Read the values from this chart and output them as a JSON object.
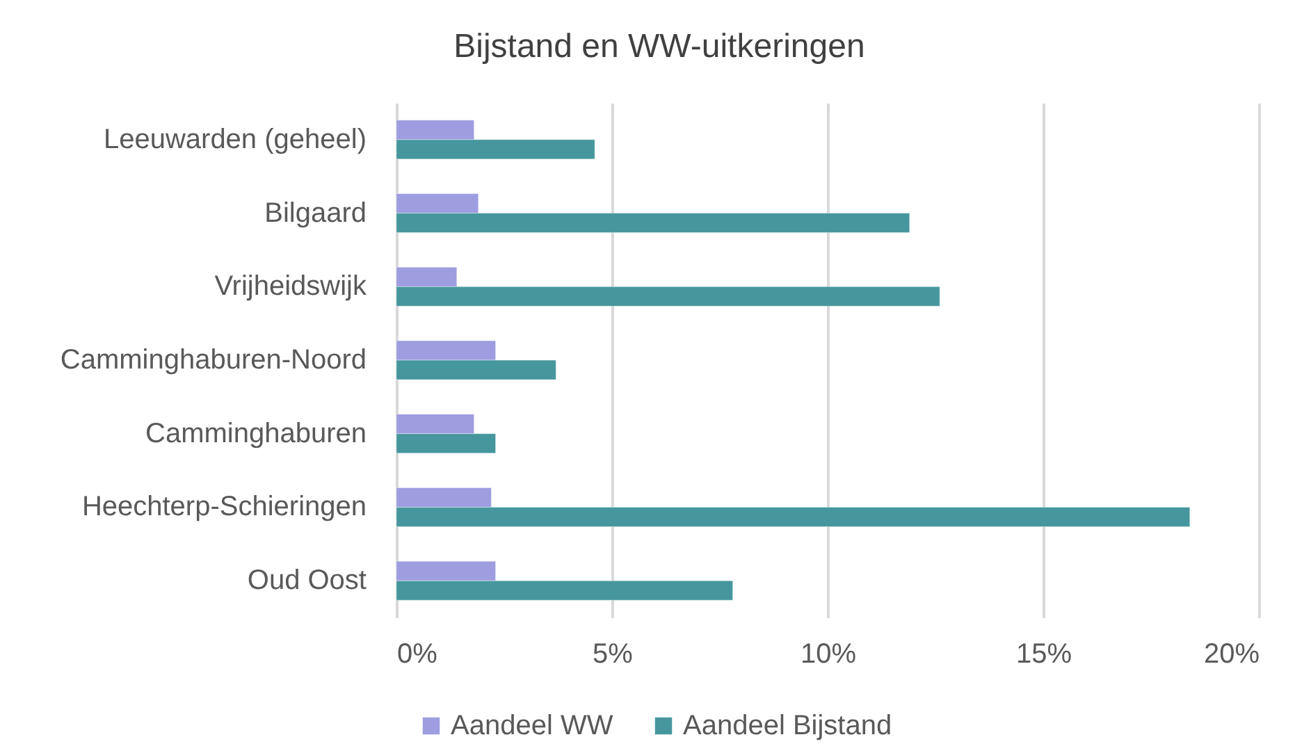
{
  "chart_data": {
    "type": "bar",
    "orientation": "horizontal",
    "title": "Bijstand en WW-uitkeringen",
    "categories": [
      "Leeuwarden (geheel)",
      "Bilgaard",
      "Vrijheidswijk",
      "Camminghaburen-Noord",
      "Camminghaburen",
      "Heechterp-Schieringen",
      "Oud Oost"
    ],
    "series": [
      {
        "name": "Aandeel WW",
        "color": "#9e9ddf",
        "values": [
          1.8,
          1.9,
          1.4,
          2.3,
          1.8,
          2.2,
          2.3
        ]
      },
      {
        "name": "Aandeel Bijstand",
        "color": "#46979d",
        "values": [
          4.6,
          11.9,
          12.6,
          3.7,
          2.3,
          18.4,
          7.8
        ]
      }
    ],
    "xlim": [
      0,
      20
    ],
    "xticks": [
      {
        "value": 0,
        "label": "0%"
      },
      {
        "value": 5,
        "label": "5%"
      },
      {
        "value": 10,
        "label": "10%"
      },
      {
        "value": 15,
        "label": "15%"
      },
      {
        "value": 20,
        "label": "20%"
      }
    ],
    "grid": "x",
    "legend": "bottom"
  }
}
